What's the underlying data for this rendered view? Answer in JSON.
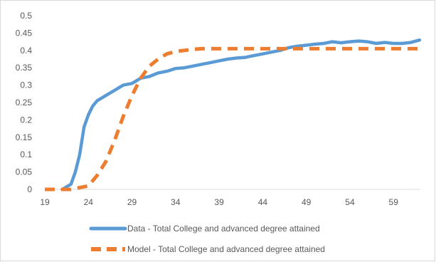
{
  "chart_data": {
    "type": "line",
    "title": "",
    "xlabel": "",
    "ylabel": "",
    "xlim": [
      19,
      62
    ],
    "ylim": [
      0,
      0.5
    ],
    "x_ticks": [
      19,
      24,
      29,
      34,
      39,
      44,
      49,
      54,
      59
    ],
    "y_ticks": [
      "0",
      "0.05",
      "0.1",
      "0.15",
      "0.2",
      "0.25",
      "0.3",
      "0.35",
      "0.4",
      "0.45",
      "0.5"
    ],
    "grid": "off",
    "legend_position": "bottom",
    "series": [
      {
        "name": "Data - Total College and advanced degree attained",
        "color": "#5B9BD5",
        "style": "solid",
        "x": [
          21,
          22,
          22.5,
          23,
          23.5,
          24,
          24.5,
          25,
          26,
          27,
          28,
          29,
          30,
          31,
          32,
          33,
          34,
          35,
          36,
          37,
          38,
          39,
          40,
          41,
          42,
          43,
          44,
          45,
          46,
          47,
          48,
          49,
          50,
          51,
          52,
          53,
          54,
          55,
          56,
          57,
          58,
          59,
          60,
          61,
          62
        ],
        "y": [
          0,
          0.015,
          0.05,
          0.1,
          0.18,
          0.215,
          0.24,
          0.255,
          0.27,
          0.285,
          0.3,
          0.305,
          0.32,
          0.325,
          0.335,
          0.34,
          0.348,
          0.35,
          0.355,
          0.36,
          0.365,
          0.37,
          0.375,
          0.378,
          0.38,
          0.385,
          0.39,
          0.395,
          0.4,
          0.408,
          0.412,
          0.415,
          0.418,
          0.42,
          0.425,
          0.422,
          0.425,
          0.427,
          0.425,
          0.42,
          0.423,
          0.42,
          0.42,
          0.423,
          0.43
        ]
      },
      {
        "name": "Model - Total College and advanced degree attained",
        "color": "#ED7D31",
        "style": "dashed",
        "x": [
          19,
          21,
          22,
          23,
          24,
          25,
          26,
          27,
          28,
          29,
          30,
          31,
          32,
          33,
          34,
          35,
          36,
          37,
          38,
          40,
          42,
          44,
          46,
          48,
          50,
          52,
          54,
          56,
          58,
          60,
          62
        ],
        "y": [
          0,
          0,
          0,
          0.005,
          0.01,
          0.04,
          0.08,
          0.14,
          0.21,
          0.27,
          0.32,
          0.355,
          0.375,
          0.39,
          0.397,
          0.4,
          0.403,
          0.405,
          0.405,
          0.405,
          0.405,
          0.405,
          0.405,
          0.405,
          0.405,
          0.405,
          0.405,
          0.405,
          0.405,
          0.405,
          0.405
        ]
      }
    ]
  }
}
